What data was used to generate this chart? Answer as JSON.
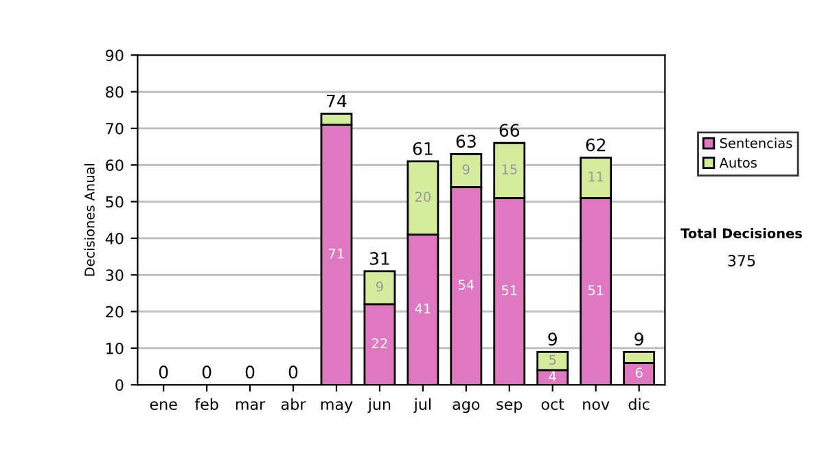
{
  "chart_data": {
    "type": "bar",
    "stacked": true,
    "ylabel": "Decisiones Anual",
    "categories": [
      "ene",
      "feb",
      "mar",
      "abr",
      "may",
      "jun",
      "jul",
      "ago",
      "sep",
      "oct",
      "nov",
      "dic"
    ],
    "series": [
      {
        "name": "Sentencias",
        "color": "#df78c0",
        "values": [
          0,
          0,
          0,
          0,
          71,
          22,
          41,
          54,
          51,
          4,
          51,
          6
        ],
        "value_labels": [
          null,
          null,
          null,
          null,
          "71",
          "22",
          "41",
          "54",
          "51",
          "4",
          "51",
          "6"
        ]
      },
      {
        "name": "Autos",
        "color": "#d4ec9c",
        "values": [
          0,
          0,
          0,
          0,
          3,
          9,
          20,
          9,
          15,
          5,
          11,
          3
        ],
        "value_labels": [
          null,
          null,
          null,
          null,
          null,
          "9",
          "20",
          "9",
          "15",
          "5",
          "11",
          null
        ]
      }
    ],
    "totals": [
      "0",
      "0",
      "0",
      "0",
      "74",
      "31",
      "61",
      "63",
      "66",
      "9",
      "62",
      "9"
    ],
    "ylim": [
      0,
      90
    ],
    "yticks": [
      0,
      10,
      20,
      30,
      40,
      50,
      60,
      70,
      80,
      90
    ],
    "grid": "y",
    "legend": "right",
    "annotations": [
      "Total Decisiones",
      "375"
    ]
  }
}
